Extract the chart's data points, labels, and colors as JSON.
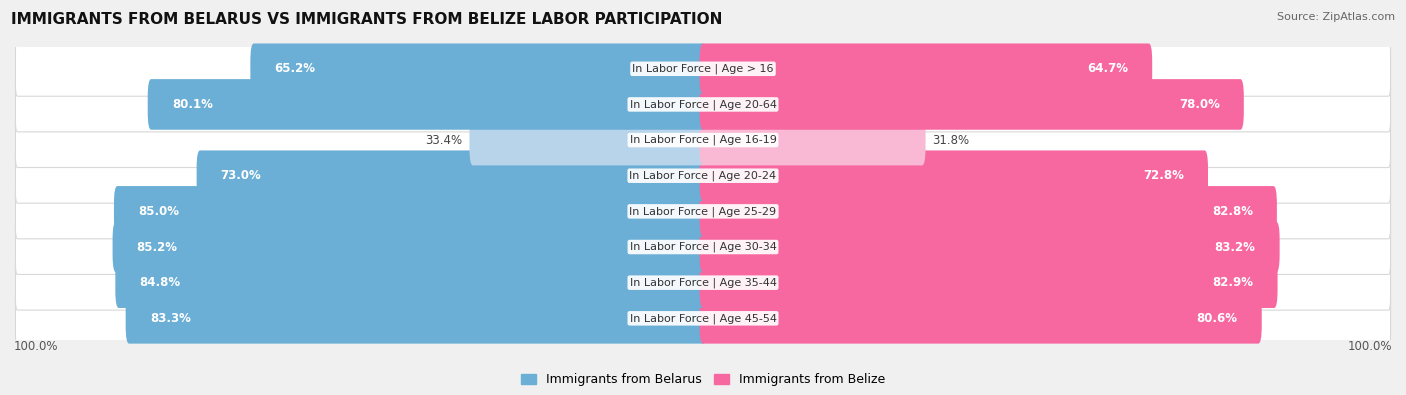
{
  "title": "IMMIGRANTS FROM BELARUS VS IMMIGRANTS FROM BELIZE LABOR PARTICIPATION",
  "source": "Source: ZipAtlas.com",
  "categories": [
    "In Labor Force | Age > 16",
    "In Labor Force | Age 20-64",
    "In Labor Force | Age 16-19",
    "In Labor Force | Age 20-24",
    "In Labor Force | Age 25-29",
    "In Labor Force | Age 30-34",
    "In Labor Force | Age 35-44",
    "In Labor Force | Age 45-54"
  ],
  "belarus_values": [
    65.2,
    80.1,
    33.4,
    73.0,
    85.0,
    85.2,
    84.8,
    83.3
  ],
  "belize_values": [
    64.7,
    78.0,
    31.8,
    72.8,
    82.8,
    83.2,
    82.9,
    80.6
  ],
  "belarus_color": "#6baed6",
  "belarus_color_light": "#b8d4ea",
  "belize_color": "#f768a1",
  "belize_color_light": "#f9b8d4",
  "belarus_label": "Immigrants from Belarus",
  "belize_label": "Immigrants from Belize",
  "background_color": "#f0f0f0",
  "row_bg_color": "#ffffff",
  "max_value": 100.0,
  "title_fontsize": 11,
  "label_fontsize": 8.0,
  "value_fontsize": 8.5,
  "legend_fontsize": 9,
  "low_value_threshold": 50
}
